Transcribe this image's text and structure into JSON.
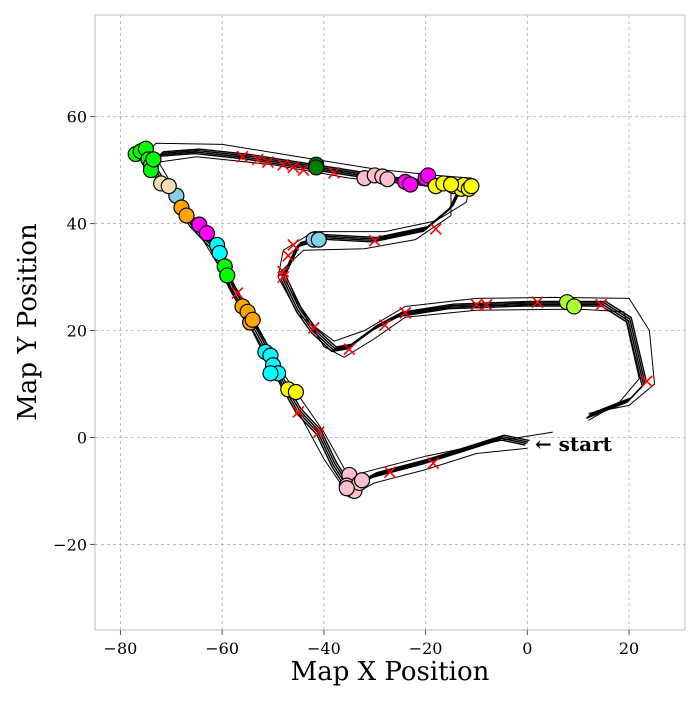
{
  "chart_data": {
    "type": "scatter",
    "title": "",
    "xlabel": "Map X Position",
    "ylabel": "Map Y Position",
    "xlim": [
      -85,
      31
    ],
    "ylim": [
      -36,
      79
    ],
    "xticks": [
      -80,
      -60,
      -40,
      -20,
      0,
      20
    ],
    "yticks": [
      -20,
      0,
      20,
      40,
      60
    ],
    "xtick_labels": [
      "−80",
      "−60",
      "−40",
      "−20",
      "0",
      "20"
    ],
    "ytick_labels": [
      "−20",
      "0",
      "20",
      "40",
      "60"
    ],
    "grid": true,
    "track": {
      "color": "#000000",
      "centerline": [
        [
          0,
          -1
        ],
        [
          -5,
          0
        ],
        [
          -20,
          -4.5
        ],
        [
          -30,
          -7
        ],
        [
          -33,
          -8.5
        ],
        [
          -35,
          -9.5
        ],
        [
          -38,
          -5
        ],
        [
          -41,
          1
        ],
        [
          -45,
          5
        ],
        [
          -48,
          10
        ],
        [
          -51,
          16
        ],
        [
          -55,
          23
        ],
        [
          -58,
          28
        ],
        [
          -62,
          36
        ],
        [
          -66,
          40
        ],
        [
          -69,
          45
        ],
        [
          -72,
          48
        ],
        [
          -74,
          51
        ],
        [
          -72,
          53
        ],
        [
          -65,
          53.5
        ],
        [
          -55,
          52.5
        ],
        [
          -45,
          51
        ],
        [
          -35,
          49.5
        ],
        [
          -25,
          48
        ],
        [
          -18,
          47.5
        ],
        [
          -13,
          47
        ],
        [
          -15,
          43
        ],
        [
          -20,
          39
        ],
        [
          -30,
          37
        ],
        [
          -40,
          37.5
        ],
        [
          -45,
          36
        ],
        [
          -48,
          30
        ],
        [
          -45,
          24
        ],
        [
          -42,
          20
        ],
        [
          -38,
          16.5
        ],
        [
          -35,
          17
        ],
        [
          -30,
          20.5
        ],
        [
          -25,
          23
        ],
        [
          -15,
          24.5
        ],
        [
          0,
          25
        ],
        [
          15,
          25
        ],
        [
          20,
          22
        ],
        [
          23,
          10
        ],
        [
          20,
          7
        ],
        [
          12,
          4
        ]
      ],
      "outer_boundary": [
        [
          0,
          -2
        ],
        [
          -10,
          -3
        ],
        [
          -20,
          -6
        ],
        [
          -30,
          -8.5
        ],
        [
          -35,
          -11
        ],
        [
          -40,
          -4
        ],
        [
          -44,
          3
        ],
        [
          -52,
          16
        ],
        [
          -60,
          31
        ],
        [
          -67,
          42
        ],
        [
          -72,
          47.5
        ],
        [
          -75,
          53
        ],
        [
          -73,
          55
        ],
        [
          -60,
          54.8
        ],
        [
          -45,
          52.5
        ],
        [
          -30,
          50.2
        ],
        [
          -18,
          49
        ],
        [
          -11,
          48.5
        ],
        [
          -12,
          44
        ],
        [
          -18,
          40.5
        ],
        [
          -28,
          38.5
        ],
        [
          -42,
          38.5
        ],
        [
          -48,
          35
        ],
        [
          -49,
          30
        ],
        [
          -45,
          23
        ],
        [
          -38,
          18
        ],
        [
          -32,
          20
        ],
        [
          -24,
          24.5
        ],
        [
          -10,
          26
        ],
        [
          5,
          26.2
        ],
        [
          20,
          26
        ],
        [
          24,
          20
        ],
        [
          25,
          10
        ],
        [
          20,
          6
        ],
        [
          12,
          4.5
        ]
      ],
      "inner_boundary": [
        [
          5,
          1
        ],
        [
          -5,
          -0.5
        ],
        [
          -20,
          -3.5
        ],
        [
          -32,
          -6.5
        ],
        [
          -35,
          -7.5
        ],
        [
          -40,
          1
        ],
        [
          -48,
          12
        ],
        [
          -57,
          27
        ],
        [
          -64,
          39
        ],
        [
          -70,
          47.5
        ],
        [
          -72.5,
          51.5
        ],
        [
          -65,
          52.5
        ],
        [
          -50,
          51
        ],
        [
          -35,
          48.5
        ],
        [
          -22,
          47.3
        ],
        [
          -15,
          46.3
        ],
        [
          -15,
          41.5
        ],
        [
          -22,
          37
        ],
        [
          -32,
          35.3
        ],
        [
          -44,
          35
        ],
        [
          -48.5,
          31
        ],
        [
          -45,
          25
        ],
        [
          -40,
          17
        ],
        [
          -36,
          15
        ],
        [
          -30,
          18.5
        ],
        [
          -24,
          22.5
        ],
        [
          -10,
          23.8
        ],
        [
          10,
          24
        ],
        [
          19,
          23.5
        ],
        [
          22,
          11
        ],
        [
          18,
          6.5
        ],
        [
          12,
          3.2
        ]
      ]
    },
    "annotations": [
      {
        "text": "← start",
        "x": 1.5,
        "y": -1.2
      }
    ],
    "cross_markers": {
      "color": "#ff0000",
      "points": [
        [
          -56,
          52.5
        ],
        [
          -53,
          52
        ],
        [
          -51,
          51.5
        ],
        [
          -48,
          51
        ],
        [
          -46,
          50.5
        ],
        [
          -44,
          50
        ],
        [
          -38,
          49.5
        ],
        [
          -30,
          36.8
        ],
        [
          -18,
          39
        ],
        [
          -10,
          24.8
        ],
        [
          -8,
          24.8
        ],
        [
          2,
          25.3
        ],
        [
          14.5,
          24.8
        ],
        [
          23.5,
          10.5
        ],
        [
          -24,
          23.3
        ],
        [
          -28,
          21
        ],
        [
          -35,
          16.5
        ],
        [
          -42,
          20.5
        ],
        [
          -48,
          31
        ],
        [
          -48,
          30
        ],
        [
          -47,
          34
        ],
        [
          -46,
          36
        ],
        [
          -45,
          4.8
        ],
        [
          -41,
          1
        ],
        [
          -27,
          -6.5
        ],
        [
          -18.5,
          -4.8
        ],
        [
          -57,
          27
        ],
        [
          -59,
          31
        ]
      ]
    },
    "series": [
      {
        "color": "#00ff00",
        "points": [
          [
            -77,
            53
          ],
          [
            -76,
            53.5
          ],
          [
            -75,
            54
          ],
          [
            -74.5,
            52
          ],
          [
            -74,
            51
          ],
          [
            -74,
            50
          ],
          [
            -73.5,
            52
          ]
        ]
      },
      {
        "color": "#008000",
        "points": [
          [
            -41.5,
            51
          ],
          [
            -41.5,
            50.5
          ]
        ]
      },
      {
        "color": "#ffc0cb",
        "points": [
          [
            -32,
            48.5
          ],
          [
            -30,
            49
          ],
          [
            -28.5,
            48.8
          ],
          [
            -27.5,
            48.3
          ]
        ]
      },
      {
        "color": "#ff00ff",
        "points": [
          [
            -20,
            48.5
          ],
          [
            -19.5,
            49
          ],
          [
            -24,
            47.8
          ],
          [
            -23,
            47.3
          ]
        ]
      },
      {
        "color": "#ffff00",
        "points": [
          [
            -18,
            47
          ],
          [
            -16.5,
            47.5
          ],
          [
            -14.5,
            47
          ],
          [
            -13,
            46.5
          ],
          [
            -12.5,
            47.2
          ],
          [
            -11.5,
            46.5
          ],
          [
            -11,
            47
          ],
          [
            -15,
            47.3
          ]
        ]
      },
      {
        "color": "#87ceeb",
        "points": [
          [
            -42,
            37
          ],
          [
            -41,
            37
          ],
          [
            -69,
            45.2
          ]
        ]
      },
      {
        "color": "#f5deb3",
        "points": [
          [
            -72,
            47.5
          ],
          [
            -70.5,
            47
          ]
        ]
      },
      {
        "color": "#ffa500",
        "points": [
          [
            -68,
            43
          ],
          [
            -67,
            41.5
          ],
          [
            -56,
            24.5
          ],
          [
            -55,
            23.5
          ],
          [
            -54.5,
            21.5
          ],
          [
            -54,
            22
          ]
        ]
      },
      {
        "color": "#ff00ff",
        "points": [
          [
            -64.5,
            39.8
          ],
          [
            -63,
            38.2
          ]
        ]
      },
      {
        "color": "#00ffff",
        "points": [
          [
            -61,
            36
          ],
          [
            -60.5,
            34.5
          ],
          [
            -51.5,
            16
          ],
          [
            -50.5,
            15.3
          ],
          [
            -50,
            13.5
          ],
          [
            -49,
            12
          ],
          [
            -50.5,
            12
          ]
        ]
      },
      {
        "color": "#00ff00",
        "points": [
          [
            -59.5,
            32
          ],
          [
            -59,
            30.3
          ]
        ]
      },
      {
        "color": "#ffff00",
        "points": [
          [
            -47,
            9
          ],
          [
            -45.5,
            8.5
          ]
        ]
      },
      {
        "color": "#ffc0cb",
        "points": [
          [
            -35,
            -7
          ],
          [
            -35.5,
            -9
          ],
          [
            -34.5,
            -9.8
          ],
          [
            -34,
            -10
          ],
          [
            -33,
            -8.5
          ],
          [
            -32.5,
            -8
          ],
          [
            -35.5,
            -9.5
          ]
        ]
      },
      {
        "color": "#adff2f",
        "points": [
          [
            7.8,
            25.3
          ],
          [
            9.2,
            24.5
          ]
        ]
      }
    ]
  }
}
